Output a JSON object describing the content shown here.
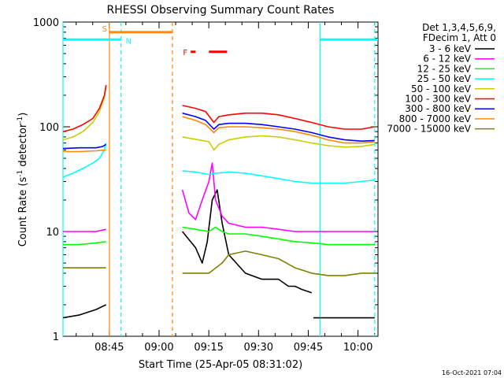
{
  "chart_data": {
    "type": "line",
    "title": "RHESSI Observing Summary Count Rates",
    "xlabel": "Start Time (25-Apr-05 08:31:02)",
    "ylabel_main": "Count Rate (s",
    "ylabel_sup1": "-1",
    "ylabel_mid": " detector",
    "ylabel_sup2": "-1",
    "ylabel_end": ")",
    "y_scale": "log",
    "ylim": [
      1,
      1000
    ],
    "xlim_minutes": [
      0,
      95
    ],
    "x_ticks": [
      {
        "label": "08:45",
        "minutes": 13.97
      },
      {
        "label": "09:00",
        "minutes": 28.97
      },
      {
        "label": "09:15",
        "minutes": 43.97
      },
      {
        "label": "09:30",
        "minutes": 58.97
      },
      {
        "label": "09:45",
        "minutes": 73.97
      },
      {
        "label": "10:00",
        "minutes": 88.97
      }
    ],
    "y_ticks": [
      {
        "label": "1",
        "value": 1
      },
      {
        "label": "10",
        "value": 10
      },
      {
        "label": "100",
        "value": 100
      },
      {
        "label": "1000",
        "value": 1000
      }
    ],
    "legend_header": [
      "Det 1,3,4,5,6,9,",
      "FDecim 1, Att 0"
    ],
    "legend_placement": "outside-right",
    "series": [
      {
        "name": "3 - 6 keV",
        "color": "#000000",
        "segments": [
          {
            "x": [
              0,
              5,
              10,
              13
            ],
            "y": [
              1.5,
              1.6,
              1.8,
              2.0
            ]
          },
          {
            "x": [
              36,
              40,
              42,
              43.5,
              45,
              46.5,
              48,
              50,
              55,
              60,
              65,
              68,
              70,
              72,
              75
            ],
            "y": [
              10,
              7,
              5,
              8,
              20,
              25,
              12,
              6,
              4,
              3.5,
              3.5,
              3,
              3,
              2.8,
              2.6
            ]
          },
          {
            "x": [
              75.5,
              80,
              85,
              90,
              94
            ],
            "y": [
              1.5,
              1.5,
              1.5,
              1.5,
              1.5
            ]
          }
        ]
      },
      {
        "name": "6 - 12 keV",
        "color": "#ff00ff",
        "segments": [
          {
            "x": [
              0,
              5,
              10,
              13
            ],
            "y": [
              10,
              10,
              10,
              10.5
            ]
          },
          {
            "x": [
              36,
              38,
              40,
              42,
              44,
              45,
              46,
              48,
              50,
              55,
              60,
              65,
              70,
              75,
              80,
              85,
              90,
              94
            ],
            "y": [
              25,
              15,
              13,
              20,
              30,
              45,
              20,
              14,
              12,
              11,
              11,
              10.5,
              10,
              10,
              10,
              10,
              10,
              10
            ]
          }
        ]
      },
      {
        "name": "12 - 25 keV",
        "color": "#00ff00",
        "segments": [
          {
            "x": [
              0,
              5,
              10,
              13
            ],
            "y": [
              7.5,
              7.5,
              7.8,
              8
            ]
          },
          {
            "x": [
              36,
              40,
              44,
              46,
              48,
              50,
              55,
              60,
              65,
              70,
              75,
              80,
              85,
              90,
              94
            ],
            "y": [
              11,
              10.5,
              10,
              11,
              10,
              9.5,
              9.5,
              9,
              8.5,
              8,
              7.8,
              7.5,
              7.5,
              7.5,
              7.5
            ]
          }
        ]
      },
      {
        "name": "25 - 50 keV",
        "color": "#00ffff",
        "segments": [
          {
            "x": [
              0,
              3,
              6,
              9,
              11,
              12.5,
              13
            ],
            "y": [
              33,
              36,
              40,
              45,
              50,
              60,
              70
            ]
          },
          {
            "x": [
              36,
              40,
              44,
              46,
              50,
              55,
              60,
              65,
              70,
              75,
              80,
              85,
              90,
              94
            ],
            "y": [
              38,
              37,
              35,
              36,
              37,
              36,
              34,
              32,
              30,
              29,
              29,
              29,
              30,
              31
            ]
          }
        ]
      },
      {
        "name": "50 - 100 keV",
        "color": "#cccc00",
        "segments": [
          {
            "x": [
              0,
              3,
              6,
              9,
              11,
              12.5,
              13
            ],
            "y": [
              75,
              80,
              90,
              110,
              140,
              190,
              250
            ]
          },
          {
            "x": [
              36,
              40,
              44,
              45.5,
              47,
              50,
              55,
              60,
              65,
              70,
              75,
              80,
              85,
              90,
              94
            ],
            "y": [
              80,
              76,
              72,
              60,
              68,
              75,
              80,
              82,
              80,
              75,
              70,
              66,
              64,
              65,
              68
            ]
          }
        ]
      },
      {
        "name": "100 - 300 keV",
        "color": "#ff0000",
        "segments": [
          {
            "x": [
              0,
              3,
              6,
              9,
              11,
              12.5,
              13
            ],
            "y": [
              90,
              95,
              105,
              120,
              150,
              200,
              250
            ]
          },
          {
            "x": [
              36,
              40,
              43,
              45.5,
              47,
              50,
              55,
              60,
              65,
              70,
              75,
              80,
              85,
              90,
              94
            ],
            "y": [
              160,
              150,
              140,
              110,
              125,
              130,
              135,
              135,
              130,
              120,
              110,
              100,
              95,
              95,
              100
            ]
          }
        ]
      },
      {
        "name": "300 - 800 keV",
        "color": "#0000ff",
        "segments": [
          {
            "x": [
              0,
              5,
              10,
              12,
              13
            ],
            "y": [
              62,
              63,
              63,
              65,
              68
            ]
          },
          {
            "x": [
              36,
              40,
              43,
              45.5,
              47,
              50,
              55,
              60,
              65,
              70,
              75,
              80,
              85,
              90,
              94
            ],
            "y": [
              135,
              125,
              115,
              95,
              105,
              108,
              108,
              105,
              100,
              95,
              88,
              80,
              75,
              73,
              74
            ]
          }
        ]
      },
      {
        "name": "800 - 7000 keV",
        "color": "#ff8800",
        "segments": [
          {
            "x": [
              0,
              5,
              10,
              13
            ],
            "y": [
              58,
              58,
              59,
              60
            ]
          },
          {
            "x": [
              36,
              40,
              43,
              45.5,
              47,
              50,
              55,
              60,
              65,
              70,
              75,
              80,
              85,
              90,
              94
            ],
            "y": [
              125,
              115,
              105,
              88,
              98,
              100,
              100,
              98,
              95,
              90,
              83,
              75,
              70,
              70,
              72
            ]
          }
        ]
      },
      {
        "name": "7000 - 15000 keV",
        "color": "#808000",
        "segments": [
          {
            "x": [
              0,
              5,
              10,
              13
            ],
            "y": [
              4.5,
              4.5,
              4.5,
              4.5
            ]
          },
          {
            "x": [
              36,
              40,
              44,
              48,
              50,
              55,
              60,
              65,
              70,
              75,
              80,
              85,
              90,
              94
            ],
            "y": [
              4,
              4,
              4,
              5,
              6,
              6.5,
              6,
              5.5,
              4.5,
              4,
              3.8,
              3.8,
              4,
              4
            ]
          }
        ]
      }
    ],
    "annotations": {
      "saa_label": "S",
      "saa_color": "#ff8800",
      "saa_start": 14,
      "saa_end": 33,
      "saa_level": 800,
      "night_label": "N",
      "night_color": "#00ffff",
      "night_bars": [
        [
          0,
          17.5
        ],
        [
          77.5,
          95
        ]
      ],
      "night_level": 680,
      "night_lines": [
        0,
        17.5,
        77.5,
        94
      ],
      "night_lines_dashed": [
        false,
        true,
        false,
        true
      ],
      "saa_lines": [
        14,
        33
      ],
      "saa_lines_dashed": [
        false,
        true
      ],
      "flare_label": "F",
      "flare_color": "#ff0000",
      "flare_bars": [
        [
          38.5,
          40
        ],
        [
          44,
          49.5
        ]
      ],
      "flare_level": 520
    },
    "timestamp": "16-Oct-2021 07:04"
  }
}
